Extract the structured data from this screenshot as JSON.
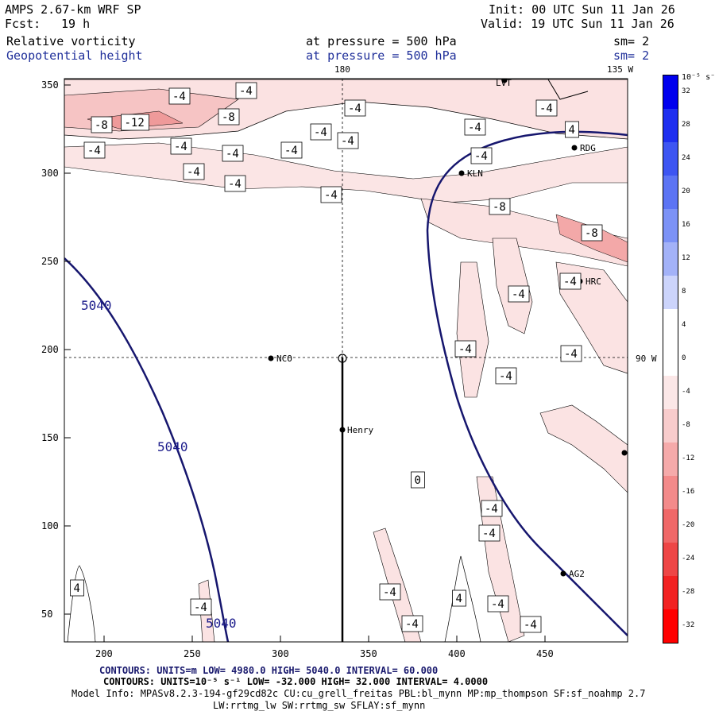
{
  "header": {
    "model": "AMPS 2.67-km WRF SP",
    "init": "Init: 00 UTC Sun 11 Jan 26",
    "fcst_label": "Fcst:",
    "fcst_value": "19 h",
    "valid": "Valid: 19 UTC Sun 11 Jan 26",
    "field1": "Relative vorticity",
    "field1_level": "at pressure =  500 hPa",
    "field1_sm": "sm= 2",
    "field2": "Geopotential height",
    "field2_level": "at pressure =  500 hPa",
    "field2_sm": "sm= 2"
  },
  "map": {
    "top_labels": [
      "180",
      "135 W"
    ],
    "right_label": "90 W",
    "x_ticks": [
      "200",
      "250",
      "300",
      "350",
      "400",
      "450"
    ],
    "y_ticks": [
      "350",
      "300",
      "250",
      "200",
      "150",
      "100",
      "50"
    ],
    "stations": [
      "NCO",
      "Henry",
      "KLN",
      "RDG",
      "HRC",
      "AG2",
      "LVT"
    ],
    "height_labels": [
      "5040",
      "5040",
      "5040"
    ],
    "vort_labels": [
      "-4",
      "-4",
      "-8",
      "-12",
      "-8",
      "-4",
      "-4",
      "-4",
      "-4",
      "-4",
      "-4",
      "-4",
      "-4",
      "-4",
      "-4",
      "-4",
      "-4",
      "-4",
      "-8",
      "-8",
      "-4",
      "-4",
      "-4",
      "-4",
      "-4",
      "-4",
      "-4",
      "-4",
      "-4",
      "-4",
      "-4",
      "-4",
      "4",
      "4",
      "4",
      "0"
    ]
  },
  "colorbar": {
    "unit": "10⁻⁵ s⁻¹",
    "labels": [
      "32",
      "28",
      "24",
      "20",
      "16",
      "12",
      "8",
      "4",
      "0",
      "-4",
      "-8",
      "-12",
      "-16",
      "-20",
      "-24",
      "-28",
      "-32"
    ],
    "colors": [
      "#0000ee",
      "#1e2ff0",
      "#3d55f2",
      "#5c74f4",
      "#7c92f6",
      "#a3b2f8",
      "#ccd4fb",
      "#ffffff",
      "#ffffff",
      "#fbe7e7",
      "#f8cccc",
      "#f5aaaa",
      "#f38a8a",
      "#f06868",
      "#ee4646",
      "#f22222",
      "#ff0000"
    ]
  },
  "footer": {
    "line1": "CONTOURS:  UNITS=m  LOW=  4980.0        HIGH=  5040.0        INTERVAL=   60.000",
    "line2": "CONTOURS:  UNITS=10⁻⁵ s⁻¹  LOW=  -32.000       HIGH=  32.000      INTERVAL=   4.0000",
    "line3": "Model Info: MPASv8.2.3-194-gf29cd82c CU:cu_grell_freitas PBL:bl_mynn MP:mp_thompson SF:sf_noahmp 2.7",
    "line4": "LW:rrtmg_lw SW:rrtmg_sw SFLAY:sf_mynn"
  }
}
